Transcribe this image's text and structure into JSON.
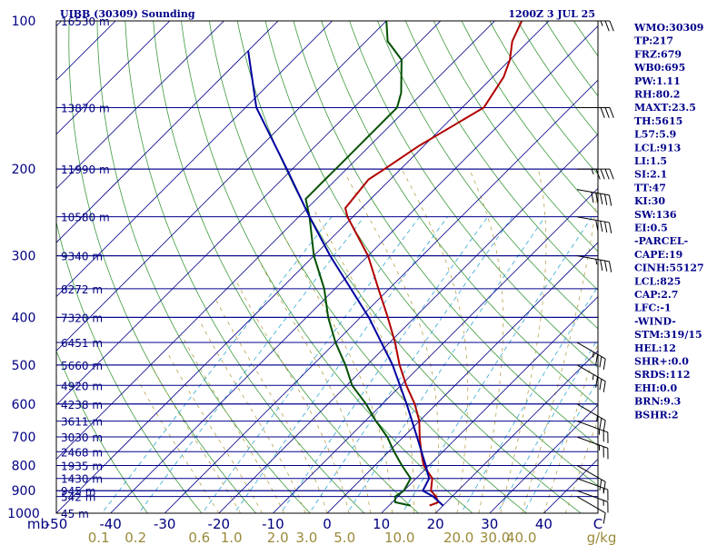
{
  "header": {
    "station": "UIBB (30309) Sounding",
    "time": "1200Z  3 JUL 25"
  },
  "chart_data": {
    "type": "line",
    "title": "UIBB (30309) Sounding",
    "subtitle": "1200Z  3 JUL 25",
    "ylabel": "mb",
    "xlabel": "",
    "xlim": [
      -50,
      50
    ],
    "ylim": [
      1000,
      100
    ],
    "y_scale": "log",
    "x_ticks": [
      -50,
      -40,
      -30,
      -20,
      -10,
      0,
      10,
      20,
      30,
      40,
      50
    ],
    "y_tick_labels": [
      "100",
      "200",
      "300",
      "400",
      "500",
      "600",
      "700",
      "800",
      "900",
      "1000"
    ],
    "x_tick_labels": [
      "-50",
      "-40",
      "-30",
      "-20",
      "-10",
      "0",
      "10",
      "20",
      "30",
      "40",
      "C"
    ],
    "y_unit_label": "mb",
    "mixing_ratio_unit": "g/kg",
    "mixing_ratio_labels": [
      "0.1",
      "0.2",
      "0.6",
      "1.0",
      "2.0",
      "3.0",
      "5.0",
      "10.0",
      "20.0",
      "30.0",
      "40.0"
    ],
    "mandatory_levels": [
      {
        "p": 100,
        "height": "16530 m"
      },
      {
        "p": 150,
        "height": "13870 m"
      },
      {
        "p": 200,
        "height": "11990 m"
      },
      {
        "p": 250,
        "height": "10580 m"
      },
      {
        "p": 300,
        "height": "9340 m"
      },
      {
        "p": 350,
        "height": "8272 m"
      },
      {
        "p": 400,
        "height": "7320 m"
      },
      {
        "p": 450,
        "height": "6451 m"
      },
      {
        "p": 500,
        "height": "5660 m"
      },
      {
        "p": 550,
        "height": "4920 m"
      },
      {
        "p": 600,
        "height": "4238 m"
      },
      {
        "p": 650,
        "height": "3611 m"
      },
      {
        "p": 700,
        "height": "3030 m"
      },
      {
        "p": 750,
        "height": "2468 m"
      },
      {
        "p": 800,
        "height": "1935 m"
      },
      {
        "p": 850,
        "height": "1430 m"
      },
      {
        "p": 900,
        "height": "945 m"
      },
      {
        "p": 925,
        "height": "542 m"
      },
      {
        "p": 1000,
        "height": "45 m"
      }
    ],
    "series": [
      {
        "role": "temperature",
        "color": "#b00000",
        "points": [
          {
            "p": 965,
            "t": 17.5
          },
          {
            "p": 950,
            "t": 18.5
          },
          {
            "p": 925,
            "t": 17
          },
          {
            "p": 900,
            "t": 15
          },
          {
            "p": 850,
            "t": 13
          },
          {
            "p": 800,
            "t": 9
          },
          {
            "p": 750,
            "t": 6
          },
          {
            "p": 700,
            "t": 3
          },
          {
            "p": 650,
            "t": 0
          },
          {
            "p": 600,
            "t": -4
          },
          {
            "p": 550,
            "t": -9
          },
          {
            "p": 500,
            "t": -14
          },
          {
            "p": 450,
            "t": -19
          },
          {
            "p": 400,
            "t": -25
          },
          {
            "p": 350,
            "t": -32
          },
          {
            "p": 300,
            "t": -40
          },
          {
            "p": 250,
            "t": -51
          },
          {
            "p": 240,
            "t": -53
          },
          {
            "p": 210,
            "t": -54
          },
          {
            "p": 200,
            "t": -53
          },
          {
            "p": 180,
            "t": -51
          },
          {
            "p": 150,
            "t": -46
          },
          {
            "p": 130,
            "t": -48
          },
          {
            "p": 120,
            "t": -50
          },
          {
            "p": 110,
            "t": -53
          },
          {
            "p": 100,
            "t": -55
          }
        ]
      },
      {
        "role": "dewpoint",
        "color": "#005000",
        "points": [
          {
            "p": 965,
            "t": 14
          },
          {
            "p": 950,
            "t": 10.5
          },
          {
            "p": 925,
            "t": 9.5
          },
          {
            "p": 900,
            "t": 10
          },
          {
            "p": 850,
            "t": 9
          },
          {
            "p": 800,
            "t": 5
          },
          {
            "p": 750,
            "t": 1
          },
          {
            "p": 700,
            "t": -3
          },
          {
            "p": 650,
            "t": -8
          },
          {
            "p": 600,
            "t": -13
          },
          {
            "p": 550,
            "t": -19
          },
          {
            "p": 500,
            "t": -24
          },
          {
            "p": 450,
            "t": -30
          },
          {
            "p": 400,
            "t": -36
          },
          {
            "p": 350,
            "t": -42
          },
          {
            "p": 300,
            "t": -50
          },
          {
            "p": 250,
            "t": -58
          },
          {
            "p": 230,
            "t": -62
          },
          {
            "p": 210,
            "t": -62
          },
          {
            "p": 200,
            "t": -62
          },
          {
            "p": 150,
            "t": -62
          },
          {
            "p": 140,
            "t": -64
          },
          {
            "p": 120,
            "t": -70
          },
          {
            "p": 110,
            "t": -76
          },
          {
            "p": 100,
            "t": -80
          }
        ]
      },
      {
        "role": "parcel",
        "color": "#0000a0",
        "points": [
          {
            "p": 965,
            "t": 20
          },
          {
            "p": 925,
            "t": 16.5
          },
          {
            "p": 900,
            "t": 13.5
          },
          {
            "p": 850,
            "t": 12.4
          },
          {
            "p": 800,
            "t": 9.4
          },
          {
            "p": 700,
            "t": 2.5
          },
          {
            "p": 600,
            "t": -5.5
          },
          {
            "p": 500,
            "t": -15.3
          },
          {
            "p": 400,
            "t": -28.5
          },
          {
            "p": 300,
            "t": -47
          },
          {
            "p": 250,
            "t": -58
          },
          {
            "p": 200,
            "t": -71
          },
          {
            "p": 150,
            "t": -88
          },
          {
            "p": 115,
            "t": -100
          }
        ]
      }
    ],
    "wind_barbs": [
      {
        "p": 925,
        "dir": 300,
        "spd": 10
      },
      {
        "p": 900,
        "dir": 290,
        "spd": 15
      },
      {
        "p": 850,
        "dir": 290,
        "spd": 15
      },
      {
        "p": 800,
        "dir": 300,
        "spd": 20
      },
      {
        "p": 700,
        "dir": 290,
        "spd": 25
      },
      {
        "p": 650,
        "dir": 290,
        "spd": 25
      },
      {
        "p": 600,
        "dir": 300,
        "spd": 25
      },
      {
        "p": 500,
        "dir": 300,
        "spd": 35
      },
      {
        "p": 450,
        "dir": 300,
        "spd": 35
      },
      {
        "p": 300,
        "dir": 280,
        "spd": 35
      },
      {
        "p": 250,
        "dir": 280,
        "spd": 40
      },
      {
        "p": 220,
        "dir": 280,
        "spd": 50
      },
      {
        "p": 200,
        "dir": 270,
        "spd": 45
      },
      {
        "p": 150,
        "dir": 270,
        "spd": 30
      },
      {
        "p": 100,
        "dir": 270,
        "spd": 25
      }
    ]
  },
  "stats": [
    "WMO:30309",
    "TP:217",
    "FRZ:679",
    "WB0:695",
    "PW:1.11",
    "RH:80.2",
    "MAXT:23.5",
    "TH:5615",
    "L57:5.9",
    "LCL:913",
    "LI:1.5",
    "SI:2.1",
    "TT:47",
    "KI:30",
    "SW:136",
    "EI:0.5",
    "-PARCEL-",
    "CAPE:19",
    "CINH:55127",
    "LCL:825",
    "CAP:2.7",
    "LFC:-1",
    "-WIND-",
    "STM:319/15",
    "HEL:12",
    "SHR+:0.0",
    "SRDS:112",
    "EHI:0.0",
    "BRN:9.3",
    "BSHR:2"
  ]
}
